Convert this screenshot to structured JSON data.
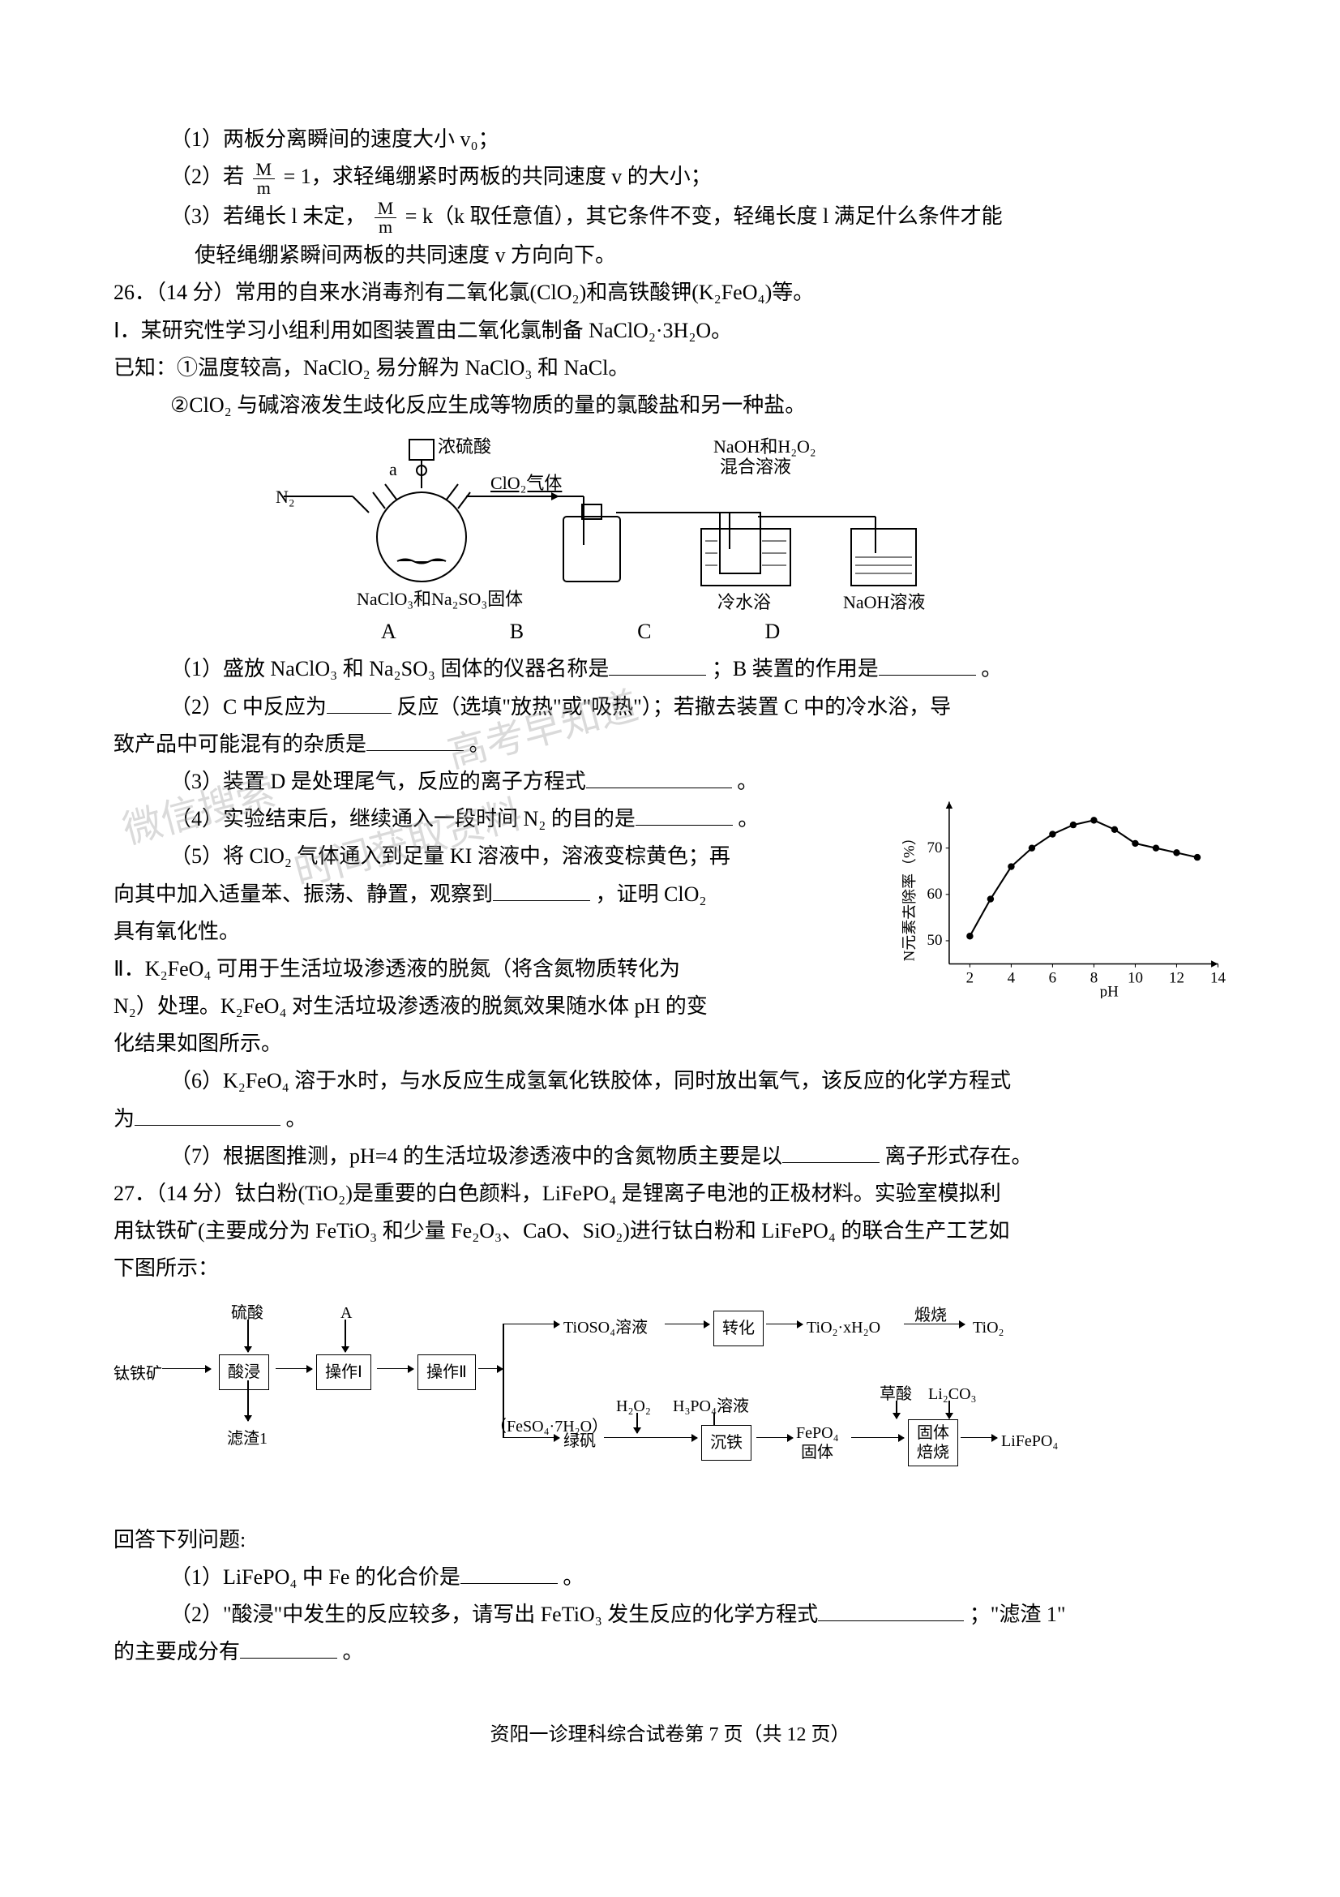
{
  "q25": {
    "sub1": "（1）两板分离瞬间的速度大小 v₀；",
    "sub2_pre": "（2）若 ",
    "sub2_frac_num": "M",
    "sub2_frac_den": "m",
    "sub2_post": " = 1，求轻绳绷紧时两板的共同速度 v 的大小；",
    "sub3_pre": "（3）若绳长 l 未定，",
    "sub3_frac_num": "M",
    "sub3_frac_den": "m",
    "sub3_post": " = k（k 取任意值），其它条件不变，轻绳长度 l 满足什么条件才能",
    "sub3_cont": "使轻绳绷紧瞬间两板的共同速度 v 方向向下。"
  },
  "q26": {
    "header": "26．（14 分）常用的自来水消毒剂有二氧化氯(ClO₂)和高铁酸钾(K₂FeO₄)等。",
    "part1": "Ⅰ．某研究性学习小组利用如图装置由二氧化氯制备 NaClO₂·3H₂O。",
    "known": "已知：①温度较高，NaClO₂ 易分解为 NaClO₃ 和 NaCl。",
    "known2": "②ClO₂ 与碱溶液发生歧化反应生成等物质的量的氯酸盐和另一种盐。",
    "diagram_labels": {
      "a": "a",
      "conc_acid": "浓硫酸",
      "clo2_gas": "ClO₂气体",
      "n2": "N₂",
      "solid": "NaClO₃和Na₂SO₃固体",
      "naoh_h2o2": "NaOH和H₂O₂",
      "mix_sol": "混合溶液",
      "cold_bath": "冷水浴",
      "naoh_sol": "NaOH溶液",
      "A": "A",
      "B": "B",
      "C": "C",
      "D": "D"
    },
    "sub1_a": "（1）盛放 NaClO₃ 和 Na₂SO₃ 固体的仪器名称是",
    "sub1_b": "；B 装置的作用是",
    "sub1_c": "。",
    "sub2_a": "（2）C 中反应为",
    "sub2_b": "反应（选填\"放热\"或\"吸热\"）；若撤去装置 C 中的冷水浴，导",
    "sub2_c": "致产品中可能混有的杂质是",
    "sub2_d": "。",
    "sub3_a": "（3）装置 D 是处理尾气，反应的离子方程式",
    "sub3_b": "。",
    "sub4_a": "（4）实验结束后，继续通入一段时间 N₂ 的目的是",
    "sub4_b": "。",
    "sub5_a": "（5）将 ClO₂ 气体通入到足量 KI 溶液中，溶液变棕黄色；再",
    "sub5_b": "向其中加入适量苯、振荡、静置，观察到",
    "sub5_c": "，证明 ClO₂",
    "sub5_d": "具有氧化性。",
    "part2_a": "Ⅱ．K₂FeO₄ 可用于生活垃圾渗透液的脱氮（将含氮物质转化为",
    "part2_b": "N₂）处理。K₂FeO₄ 对生活垃圾渗透液的脱氮效果随水体 pH 的变",
    "part2_c": "化结果如图所示。",
    "sub6_a": "（6）K₂FeO₄ 溶于水时，与水反应生成氢氧化铁胶体，同时放出氧气，该反应的化学方程式",
    "sub6_b": "为",
    "sub6_c": "。",
    "sub7_a": "（7）根据图推测，pH=4 的生活垃圾渗透液中的含氮物质主要是以",
    "sub7_b": "离子形式存在。"
  },
  "chart": {
    "type": "line_scatter",
    "ylabel": "N元素去除率（%）",
    "xlabel": "pH",
    "xlim": [
      1,
      14
    ],
    "ylim": [
      45,
      80
    ],
    "xticks": [
      2,
      4,
      6,
      8,
      10,
      12,
      14
    ],
    "yticks": [
      50,
      60,
      70
    ],
    "points_x": [
      2,
      3,
      4,
      5,
      6,
      7,
      8,
      9,
      10,
      11,
      12,
      13
    ],
    "points_y": [
      51,
      59,
      66,
      70,
      73,
      75,
      76,
      74,
      71,
      70,
      69,
      68
    ],
    "marker_color": "#000000",
    "line_color": "#000000",
    "axis_color": "#000000",
    "background_color": "#ffffff",
    "marker_size": 4,
    "line_width": 2,
    "label_fontsize": 18
  },
  "q27": {
    "header_a": "27．（14 分）钛白粉(TiO₂)是重要的白色颜料，LiFePO₄ 是锂离子电池的正极材料。实验室模拟利",
    "header_b": "用钛铁矿(主要成分为 FeTiO₃ 和少量 Fe₂O₃、CaO、SiO₂)进行钛白粉和 LiFePO₄ 的联合生产工艺如",
    "header_c": "下图所示：",
    "answer_header": "回答下列问题:",
    "sub1_a": "（1）LiFePO₄ 中 Fe 的化合价是",
    "sub1_b": "。",
    "sub2_a": "（2）\"酸浸\"中发生的反应较多，请写出 FeTiO₃ 发生反应的化学方程式",
    "sub2_b": "；\"滤渣 1\"",
    "sub2_c": "的主要成分有",
    "sub2_d": "。"
  },
  "flowchart": {
    "nodes": {
      "titanite": "钛铁矿",
      "h2so4": "硫酸",
      "A": "A",
      "acid_leach": "酸浸",
      "op1": "操作Ⅰ",
      "op2": "操作Ⅱ",
      "residue1": "滤渣1",
      "tioso4": "TiOSO₄溶液",
      "convert": "转化",
      "tio2_xh2o": "TiO₂·xH₂O",
      "calcine": "煅烧",
      "tio2": "TiO₂",
      "feso4_pre": "（FeSO₄·7H₂O）",
      "green_vitriol": "绿矾",
      "h2o2": "H₂O₂",
      "h3po4": "H₃PO₄溶液",
      "precip_fe": "沉铁",
      "fepo4": "FePO₄",
      "fepo4_solid": "固体",
      "oxalic": "草酸",
      "li2co3": "Li₂CO₃",
      "solid_roast": "固体",
      "solid_roast2": "焙烧",
      "lifepo4": "LiFePO₄"
    },
    "box_border_color": "#000000"
  },
  "footer": "资阳一诊理科综合试卷第 7 页（共 12 页）",
  "watermarks": {
    "w1": "高考早知道",
    "w2": "微信搜索",
    "w3": "时间获取资料"
  }
}
